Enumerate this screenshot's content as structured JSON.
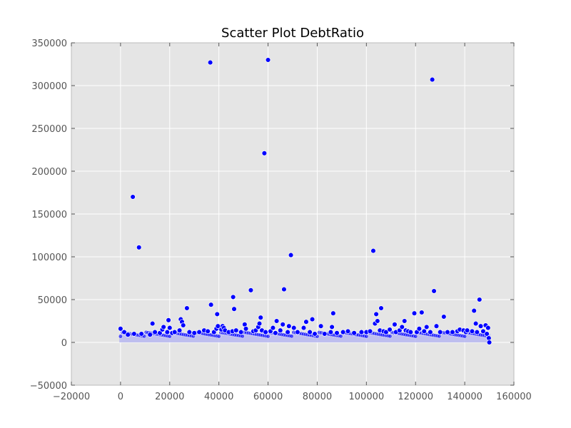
{
  "chart_data": {
    "type": "scatter",
    "title": "Scatter Plot DebtRatio",
    "xlabel": "",
    "ylabel": "",
    "xlim": [
      -20000,
      160000
    ],
    "ylim": [
      -50000,
      350000
    ],
    "x_ticks": [
      -20000,
      0,
      20000,
      40000,
      60000,
      80000,
      100000,
      120000,
      140000,
      160000
    ],
    "y_ticks": [
      -50000,
      0,
      50000,
      100000,
      150000,
      200000,
      250000,
      300000,
      350000
    ],
    "x_tick_labels": [
      "−20000",
      "0",
      "20000",
      "40000",
      "60000",
      "80000",
      "100000",
      "120000",
      "140000",
      "160000"
    ],
    "y_tick_labels": [
      "−50000",
      "0",
      "50000",
      "100000",
      "150000",
      "200000",
      "250000",
      "300000",
      "350000"
    ],
    "grid": true,
    "legend": false,
    "colors": {
      "background": "#e5e5e5",
      "marker": "#0000ff",
      "marker_edge": "#ffffff",
      "dense_band": "#b7b7f0",
      "grid": "#ffffff"
    },
    "series": [
      {
        "values": [
          [
            0,
            16000
          ],
          [
            1500,
            12000
          ],
          [
            3000,
            9000
          ],
          [
            5000,
            170000
          ],
          [
            5500,
            10000
          ],
          [
            7500,
            111000
          ],
          [
            8500,
            10000
          ],
          [
            12000,
            9000
          ],
          [
            13000,
            22000
          ],
          [
            14000,
            12000
          ],
          [
            16000,
            11000
          ],
          [
            17000,
            15000
          ],
          [
            17500,
            18000
          ],
          [
            19000,
            12000
          ],
          [
            19500,
            26000
          ],
          [
            20000,
            17000
          ],
          [
            21000,
            11000
          ],
          [
            22000,
            12000
          ],
          [
            24000,
            14000
          ],
          [
            24500,
            27000
          ],
          [
            25000,
            24000
          ],
          [
            25500,
            20000
          ],
          [
            27000,
            40000
          ],
          [
            28000,
            12000
          ],
          [
            30000,
            11000
          ],
          [
            32000,
            12000
          ],
          [
            34000,
            14000
          ],
          [
            35500,
            13000
          ],
          [
            36500,
            327000
          ],
          [
            36800,
            44000
          ],
          [
            38000,
            12000
          ],
          [
            39000,
            16000
          ],
          [
            39300,
            33000
          ],
          [
            39600,
            19000
          ],
          [
            41000,
            15000
          ],
          [
            41500,
            19000
          ],
          [
            42000,
            17000
          ],
          [
            42500,
            14000
          ],
          [
            44000,
            12000
          ],
          [
            45500,
            13000
          ],
          [
            45800,
            53000
          ],
          [
            46200,
            39000
          ],
          [
            47000,
            14000
          ],
          [
            49000,
            12000
          ],
          [
            50500,
            21000
          ],
          [
            51000,
            16000
          ],
          [
            53000,
            61000
          ],
          [
            54000,
            13000
          ],
          [
            55000,
            14000
          ],
          [
            56000,
            18000
          ],
          [
            56500,
            22000
          ],
          [
            57000,
            29000
          ],
          [
            57500,
            14000
          ],
          [
            58500,
            221000
          ],
          [
            59000,
            12000
          ],
          [
            60000,
            330000
          ],
          [
            61000,
            13000
          ],
          [
            62000,
            17000
          ],
          [
            63000,
            11000
          ],
          [
            63500,
            25000
          ],
          [
            65000,
            14000
          ],
          [
            66000,
            21000
          ],
          [
            66500,
            62000
          ],
          [
            68000,
            12000
          ],
          [
            68500,
            19000
          ],
          [
            69300,
            102000
          ],
          [
            70500,
            17000
          ],
          [
            72000,
            12000
          ],
          [
            74500,
            17000
          ],
          [
            75500,
            24000
          ],
          [
            77000,
            12000
          ],
          [
            78000,
            27000
          ],
          [
            79000,
            10000
          ],
          [
            81500,
            19000
          ],
          [
            83000,
            10000
          ],
          [
            85500,
            12000
          ],
          [
            86000,
            18000
          ],
          [
            86500,
            34000
          ],
          [
            88000,
            11000
          ],
          [
            90500,
            12000
          ],
          [
            92500,
            13000
          ],
          [
            95000,
            11000
          ],
          [
            98000,
            12000
          ],
          [
            100000,
            12000
          ],
          [
            101500,
            13000
          ],
          [
            102800,
            107000
          ],
          [
            103500,
            22000
          ],
          [
            104000,
            33000
          ],
          [
            104500,
            25000
          ],
          [
            105500,
            14000
          ],
          [
            106000,
            40000
          ],
          [
            107000,
            13000
          ],
          [
            108000,
            12000
          ],
          [
            109500,
            15000
          ],
          [
            111500,
            21000
          ],
          [
            112000,
            12000
          ],
          [
            113500,
            14000
          ],
          [
            114500,
            18000
          ],
          [
            115500,
            25000
          ],
          [
            116000,
            14000
          ],
          [
            117000,
            13000
          ],
          [
            118000,
            12000
          ],
          [
            119500,
            34000
          ],
          [
            120500,
            12000
          ],
          [
            121500,
            16000
          ],
          [
            122500,
            35000
          ],
          [
            123500,
            13000
          ],
          [
            124500,
            18000
          ],
          [
            126000,
            12000
          ],
          [
            126800,
            307000
          ],
          [
            127500,
            60000
          ],
          [
            128500,
            19000
          ],
          [
            130000,
            12000
          ],
          [
            131500,
            30000
          ],
          [
            133000,
            12000
          ],
          [
            135000,
            12000
          ],
          [
            137000,
            13000
          ],
          [
            138000,
            15000
          ],
          [
            139500,
            14000
          ],
          [
            140500,
            12000
          ],
          [
            141000,
            14000
          ],
          [
            143000,
            13000
          ],
          [
            143800,
            37000
          ],
          [
            144500,
            22000
          ],
          [
            145000,
            12000
          ],
          [
            146000,
            50000
          ],
          [
            146500,
            19000
          ],
          [
            147500,
            13000
          ],
          [
            148500,
            20000
          ],
          [
            149000,
            10000
          ],
          [
            149500,
            17000
          ],
          [
            149800,
            5000
          ],
          [
            150000,
            0
          ]
        ]
      }
    ]
  }
}
